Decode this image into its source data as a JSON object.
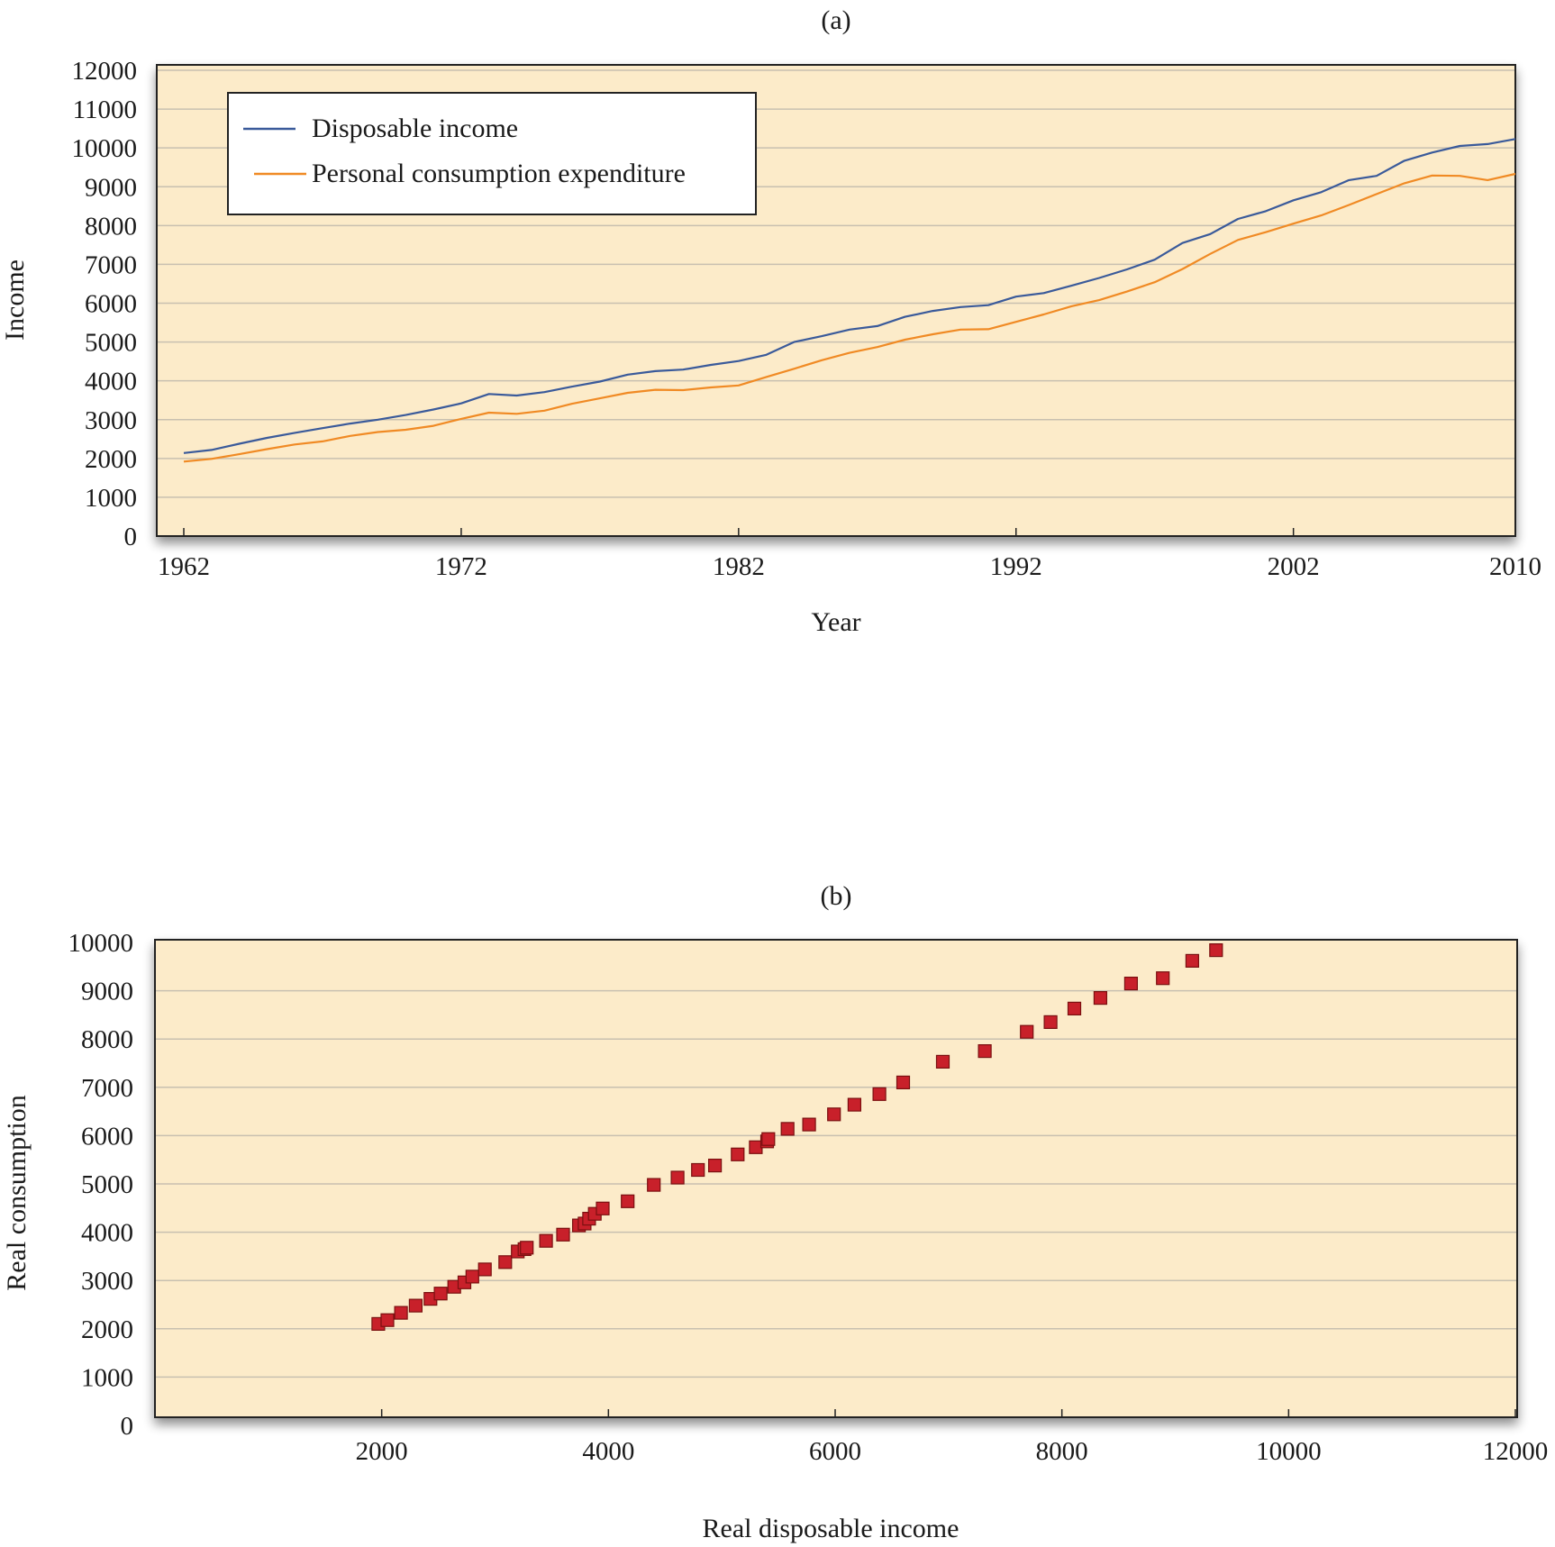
{
  "chart_data": [
    {
      "type": "line",
      "panel_label": "(a)",
      "xlabel": "Year",
      "ylabel": "Income",
      "xlim": [
        1962,
        2010
      ],
      "ylim": [
        0,
        12000
      ],
      "x_ticks": [
        1962,
        1972,
        1982,
        1992,
        2002,
        2010
      ],
      "y_ticks": [
        0,
        1000,
        2000,
        3000,
        4000,
        5000,
        6000,
        7000,
        8000,
        9000,
        10000,
        11000,
        12000
      ],
      "grid": "horizontal",
      "legend_position": "top-left",
      "colors": {
        "background": "#fcebc9",
        "grid": "#c8c0b0",
        "disposable": "#3a5a9a",
        "consumption": "#f08a24"
      },
      "x": [
        1962,
        1963,
        1964,
        1965,
        1966,
        1967,
        1968,
        1969,
        1970,
        1971,
        1972,
        1973,
        1974,
        1975,
        1976,
        1977,
        1978,
        1979,
        1980,
        1981,
        1982,
        1983,
        1984,
        1985,
        1986,
        1987,
        1988,
        1989,
        1990,
        1991,
        1992,
        1993,
        1994,
        1995,
        1996,
        1997,
        1998,
        1999,
        2000,
        2001,
        2002,
        2003,
        2004,
        2005,
        2006,
        2007,
        2008,
        2009,
        2010
      ],
      "series": [
        {
          "name": "Disposable income",
          "values": [
            2140,
            2220,
            2380,
            2530,
            2660,
            2780,
            2900,
            3000,
            3120,
            3260,
            3420,
            3660,
            3620,
            3710,
            3850,
            3980,
            4160,
            4250,
            4290,
            4410,
            4510,
            4670,
            5000,
            5150,
            5320,
            5410,
            5650,
            5800,
            5900,
            5950,
            6170,
            6260,
            6450,
            6650,
            6870,
            7120,
            7550,
            7780,
            8170,
            8370,
            8650,
            8860,
            9170,
            9280,
            9670,
            9880,
            10050,
            10100,
            10230
          ]
        },
        {
          "name": "Personal consumption expenditure",
          "values": [
            1920,
            1990,
            2110,
            2240,
            2360,
            2440,
            2580,
            2680,
            2740,
            2840,
            3020,
            3180,
            3150,
            3230,
            3410,
            3550,
            3690,
            3770,
            3760,
            3830,
            3880,
            4100,
            4310,
            4530,
            4720,
            4870,
            5060,
            5200,
            5320,
            5330,
            5520,
            5710,
            5920,
            6080,
            6300,
            6540,
            6880,
            7270,
            7630,
            7830,
            8050,
            8260,
            8530,
            8810,
            9090,
            9290,
            9280,
            9170,
            9330
          ]
        }
      ]
    },
    {
      "type": "scatter",
      "panel_label": "(b)",
      "xlabel": "Real disposable income",
      "ylabel": "Real consumption",
      "xlim": [
        0,
        12000
      ],
      "ylim": [
        0,
        10000
      ],
      "x_ticks": [
        2000,
        4000,
        6000,
        8000,
        10000,
        12000
      ],
      "y_ticks": [
        0,
        1000,
        2000,
        3000,
        4000,
        5000,
        6000,
        7000,
        8000,
        9000,
        10000
      ],
      "grid": "horizontal",
      "colors": {
        "background": "#fcebc9",
        "grid": "#c8c0b0",
        "marker": "#c8202a",
        "marker_edge": "#7a1010"
      },
      "points": [
        [
          1970,
          2100
        ],
        [
          2050,
          2180
        ],
        [
          2170,
          2330
        ],
        [
          2300,
          2480
        ],
        [
          2430,
          2620
        ],
        [
          2520,
          2730
        ],
        [
          2640,
          2870
        ],
        [
          2730,
          2960
        ],
        [
          2800,
          3080
        ],
        [
          2910,
          3230
        ],
        [
          3090,
          3380
        ],
        [
          3200,
          3600
        ],
        [
          3260,
          3650
        ],
        [
          3280,
          3680
        ],
        [
          3450,
          3820
        ],
        [
          3600,
          3950
        ],
        [
          3740,
          4140
        ],
        [
          3790,
          4180
        ],
        [
          3830,
          4280
        ],
        [
          3880,
          4380
        ],
        [
          3950,
          4490
        ],
        [
          4170,
          4640
        ],
        [
          4400,
          4980
        ],
        [
          4610,
          5130
        ],
        [
          4790,
          5290
        ],
        [
          4940,
          5380
        ],
        [
          5140,
          5610
        ],
        [
          5300,
          5760
        ],
        [
          5400,
          5880
        ],
        [
          5410,
          5930
        ],
        [
          5580,
          6140
        ],
        [
          5770,
          6230
        ],
        [
          5990,
          6440
        ],
        [
          6170,
          6640
        ],
        [
          6390,
          6860
        ],
        [
          6600,
          7100
        ],
        [
          6950,
          7530
        ],
        [
          7320,
          7750
        ],
        [
          7690,
          8150
        ],
        [
          7900,
          8350
        ],
        [
          8110,
          8630
        ],
        [
          8340,
          8850
        ],
        [
          8610,
          9150
        ],
        [
          8890,
          9260
        ],
        [
          9150,
          9620
        ],
        [
          9360,
          9840
        ]
      ]
    }
  ]
}
